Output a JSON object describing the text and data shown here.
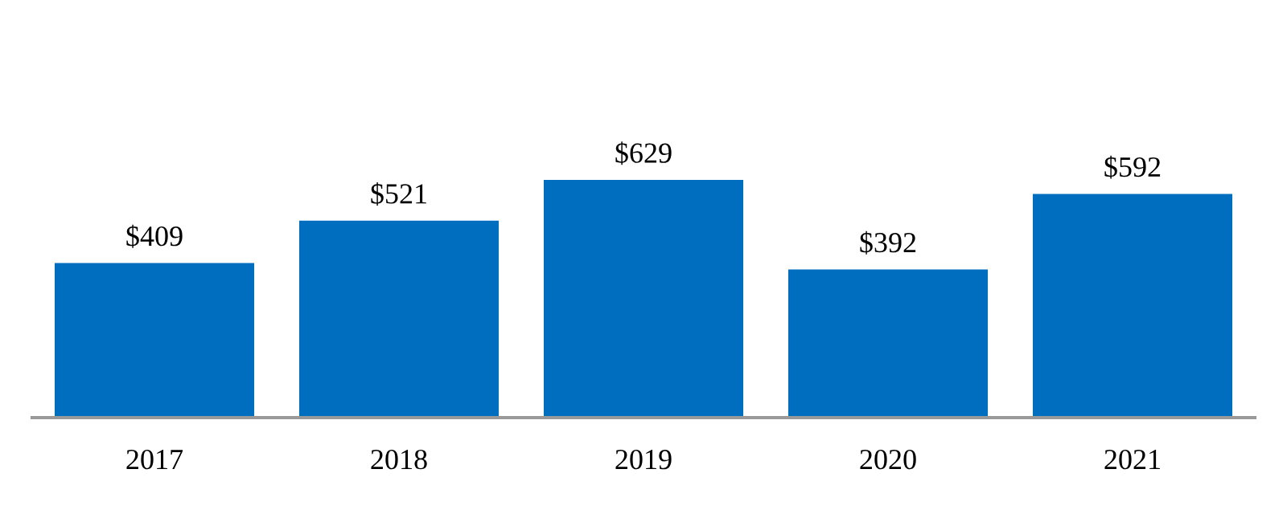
{
  "chart_data": {
    "type": "bar",
    "categories": [
      "2017",
      "2018",
      "2019",
      "2020",
      "2021"
    ],
    "values": [
      409,
      521,
      629,
      392,
      592
    ],
    "value_labels": [
      "$409",
      "$521",
      "$629",
      "$392",
      "$592"
    ],
    "color": "#006ebe",
    "grid": false,
    "legend": false
  }
}
